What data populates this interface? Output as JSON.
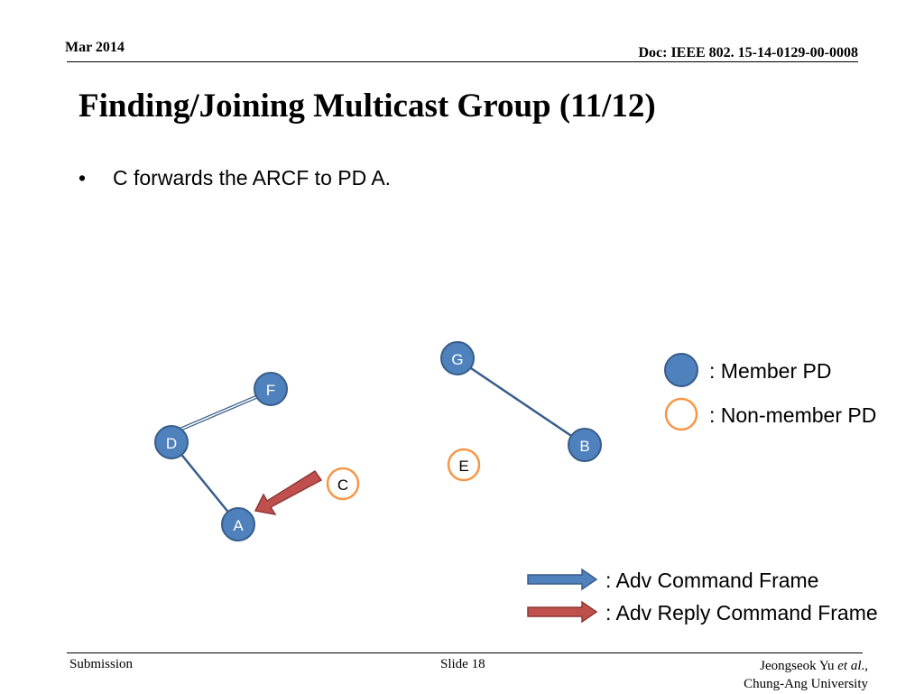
{
  "header": {
    "date": "Mar 2014",
    "doc_id": "Doc: IEEE 802. 15-14-0129-00-0008"
  },
  "slide": {
    "title": "Finding/Joining Multicast Group (11/12)",
    "bullet_marker": "•",
    "bullet": "C forwards the ARCF to PD A."
  },
  "diagram": {
    "nodes": {
      "A": "A",
      "B": "B",
      "C": "C",
      "D": "D",
      "E": "E",
      "F": "F",
      "G": "G"
    }
  },
  "legend": {
    "member": ": Member PD",
    "non_member": ": Non-member PD",
    "adv_command": ": Adv Command Frame",
    "adv_reply": ": Adv Reply Command Frame"
  },
  "colors": {
    "member_fill": "#4f81bd",
    "member_stroke": "#385d8a",
    "non_member_stroke": "#f79646",
    "reply_arrow": "#c0504d",
    "command_arrow": "#4f81bd"
  },
  "footer": {
    "left": "Submission",
    "center": "Slide 18",
    "author_name": "Jeongseok Yu ",
    "author_etal": "et al",
    "author_suffix": ".,",
    "affiliation": "Chung-Ang University"
  }
}
